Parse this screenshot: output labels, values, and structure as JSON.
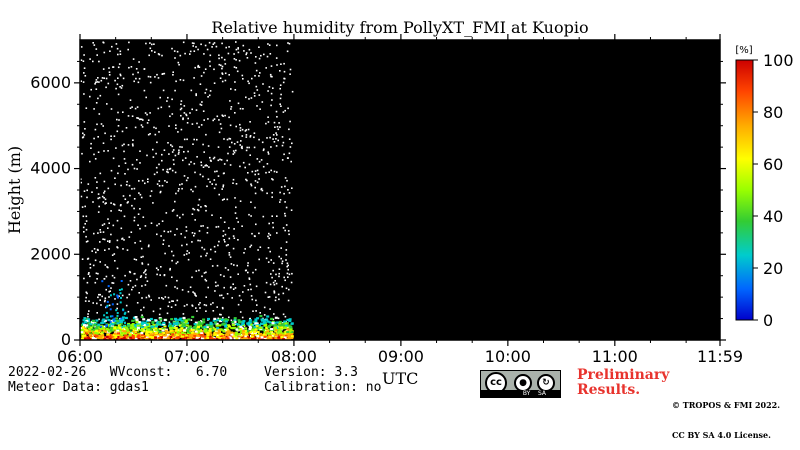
{
  "chart_data": {
    "type": "heatmap",
    "title": "Relative humidity from PollyXT_FMI at Kuopio",
    "ylabel": "Height (m)",
    "xlabel": "UTC",
    "x_ticks": [
      "06:00",
      "07:00",
      "08:00",
      "09:00",
      "10:00",
      "11:00",
      "11:59"
    ],
    "x_range": [
      "06:00",
      "11:59"
    ],
    "data_range": [
      "06:00",
      "08:00"
    ],
    "y_ticks": [
      0,
      2000,
      4000,
      6000
    ],
    "ylim": [
      0,
      7000
    ],
    "colorbar": {
      "unit": "[%]",
      "ticks": [
        0,
        20,
        40,
        60,
        80,
        100
      ],
      "range": [
        0,
        100
      ],
      "colors": [
        "#0000cc",
        "#0066ff",
        "#00cccc",
        "#33cc33",
        "#99ff00",
        "#ffff00",
        "#ffaa00",
        "#ff4400",
        "#cc0000"
      ]
    },
    "background": "#000000",
    "noise_color": "#ffffff",
    "boundary_layer_height_m": 450
  },
  "footer": {
    "date_line": "2022-02-26   WVconst:   6.70",
    "meteor_line": "Meteor Data: gdas1",
    "version_line": "Version: 3.3",
    "calibration_line": "Calibration: no",
    "preliminary": [
      "Preliminary",
      "Results."
    ],
    "copyright": [
      "© TROPOS & FMI 2022.",
      "CC BY SA 4.0 License."
    ],
    "license_badge": {
      "cc": "cc",
      "by": "BY",
      "sa": "SA"
    }
  }
}
